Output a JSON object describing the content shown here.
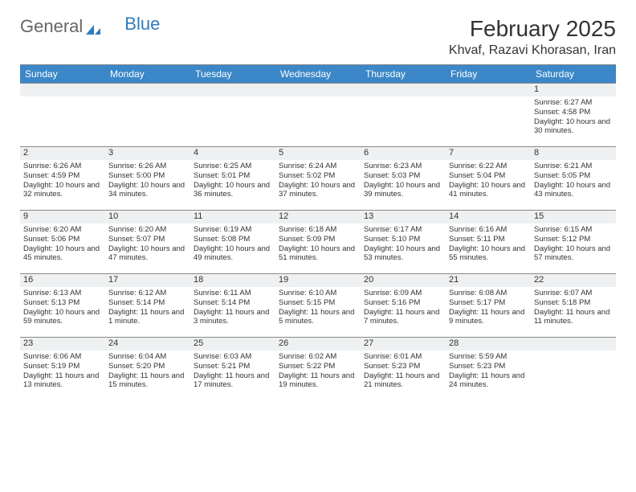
{
  "brand": {
    "general": "General",
    "blue": "Blue"
  },
  "title": "February 2025",
  "location": "Khvaf, Razavi Khorasan, Iran",
  "colors": {
    "header_bg": "#3b87c8",
    "header_text": "#ffffff",
    "rule": "#888888",
    "daynum_bg": "#eef0f1",
    "text": "#333333",
    "logo_blue": "#2f7bbf"
  },
  "day_names": [
    "Sunday",
    "Monday",
    "Tuesday",
    "Wednesday",
    "Thursday",
    "Friday",
    "Saturday"
  ],
  "weeks": [
    [
      {
        "n": "",
        "lines": []
      },
      {
        "n": "",
        "lines": []
      },
      {
        "n": "",
        "lines": []
      },
      {
        "n": "",
        "lines": []
      },
      {
        "n": "",
        "lines": []
      },
      {
        "n": "",
        "lines": []
      },
      {
        "n": "1",
        "lines": [
          "Sunrise: 6:27 AM",
          "Sunset: 4:58 PM",
          "Daylight: 10 hours and 30 minutes."
        ]
      }
    ],
    [
      {
        "n": "2",
        "lines": [
          "Sunrise: 6:26 AM",
          "Sunset: 4:59 PM",
          "Daylight: 10 hours and 32 minutes."
        ]
      },
      {
        "n": "3",
        "lines": [
          "Sunrise: 6:26 AM",
          "Sunset: 5:00 PM",
          "Daylight: 10 hours and 34 minutes."
        ]
      },
      {
        "n": "4",
        "lines": [
          "Sunrise: 6:25 AM",
          "Sunset: 5:01 PM",
          "Daylight: 10 hours and 36 minutes."
        ]
      },
      {
        "n": "5",
        "lines": [
          "Sunrise: 6:24 AM",
          "Sunset: 5:02 PM",
          "Daylight: 10 hours and 37 minutes."
        ]
      },
      {
        "n": "6",
        "lines": [
          "Sunrise: 6:23 AM",
          "Sunset: 5:03 PM",
          "Daylight: 10 hours and 39 minutes."
        ]
      },
      {
        "n": "7",
        "lines": [
          "Sunrise: 6:22 AM",
          "Sunset: 5:04 PM",
          "Daylight: 10 hours and 41 minutes."
        ]
      },
      {
        "n": "8",
        "lines": [
          "Sunrise: 6:21 AM",
          "Sunset: 5:05 PM",
          "Daylight: 10 hours and 43 minutes."
        ]
      }
    ],
    [
      {
        "n": "9",
        "lines": [
          "Sunrise: 6:20 AM",
          "Sunset: 5:06 PM",
          "Daylight: 10 hours and 45 minutes."
        ]
      },
      {
        "n": "10",
        "lines": [
          "Sunrise: 6:20 AM",
          "Sunset: 5:07 PM",
          "Daylight: 10 hours and 47 minutes."
        ]
      },
      {
        "n": "11",
        "lines": [
          "Sunrise: 6:19 AM",
          "Sunset: 5:08 PM",
          "Daylight: 10 hours and 49 minutes."
        ]
      },
      {
        "n": "12",
        "lines": [
          "Sunrise: 6:18 AM",
          "Sunset: 5:09 PM",
          "Daylight: 10 hours and 51 minutes."
        ]
      },
      {
        "n": "13",
        "lines": [
          "Sunrise: 6:17 AM",
          "Sunset: 5:10 PM",
          "Daylight: 10 hours and 53 minutes."
        ]
      },
      {
        "n": "14",
        "lines": [
          "Sunrise: 6:16 AM",
          "Sunset: 5:11 PM",
          "Daylight: 10 hours and 55 minutes."
        ]
      },
      {
        "n": "15",
        "lines": [
          "Sunrise: 6:15 AM",
          "Sunset: 5:12 PM",
          "Daylight: 10 hours and 57 minutes."
        ]
      }
    ],
    [
      {
        "n": "16",
        "lines": [
          "Sunrise: 6:13 AM",
          "Sunset: 5:13 PM",
          "Daylight: 10 hours and 59 minutes."
        ]
      },
      {
        "n": "17",
        "lines": [
          "Sunrise: 6:12 AM",
          "Sunset: 5:14 PM",
          "Daylight: 11 hours and 1 minute."
        ]
      },
      {
        "n": "18",
        "lines": [
          "Sunrise: 6:11 AM",
          "Sunset: 5:14 PM",
          "Daylight: 11 hours and 3 minutes."
        ]
      },
      {
        "n": "19",
        "lines": [
          "Sunrise: 6:10 AM",
          "Sunset: 5:15 PM",
          "Daylight: 11 hours and 5 minutes."
        ]
      },
      {
        "n": "20",
        "lines": [
          "Sunrise: 6:09 AM",
          "Sunset: 5:16 PM",
          "Daylight: 11 hours and 7 minutes."
        ]
      },
      {
        "n": "21",
        "lines": [
          "Sunrise: 6:08 AM",
          "Sunset: 5:17 PM",
          "Daylight: 11 hours and 9 minutes."
        ]
      },
      {
        "n": "22",
        "lines": [
          "Sunrise: 6:07 AM",
          "Sunset: 5:18 PM",
          "Daylight: 11 hours and 11 minutes."
        ]
      }
    ],
    [
      {
        "n": "23",
        "lines": [
          "Sunrise: 6:06 AM",
          "Sunset: 5:19 PM",
          "Daylight: 11 hours and 13 minutes."
        ]
      },
      {
        "n": "24",
        "lines": [
          "Sunrise: 6:04 AM",
          "Sunset: 5:20 PM",
          "Daylight: 11 hours and 15 minutes."
        ]
      },
      {
        "n": "25",
        "lines": [
          "Sunrise: 6:03 AM",
          "Sunset: 5:21 PM",
          "Daylight: 11 hours and 17 minutes."
        ]
      },
      {
        "n": "26",
        "lines": [
          "Sunrise: 6:02 AM",
          "Sunset: 5:22 PM",
          "Daylight: 11 hours and 19 minutes."
        ]
      },
      {
        "n": "27",
        "lines": [
          "Sunrise: 6:01 AM",
          "Sunset: 5:23 PM",
          "Daylight: 11 hours and 21 minutes."
        ]
      },
      {
        "n": "28",
        "lines": [
          "Sunrise: 5:59 AM",
          "Sunset: 5:23 PM",
          "Daylight: 11 hours and 24 minutes."
        ]
      },
      {
        "n": "",
        "lines": []
      }
    ]
  ]
}
